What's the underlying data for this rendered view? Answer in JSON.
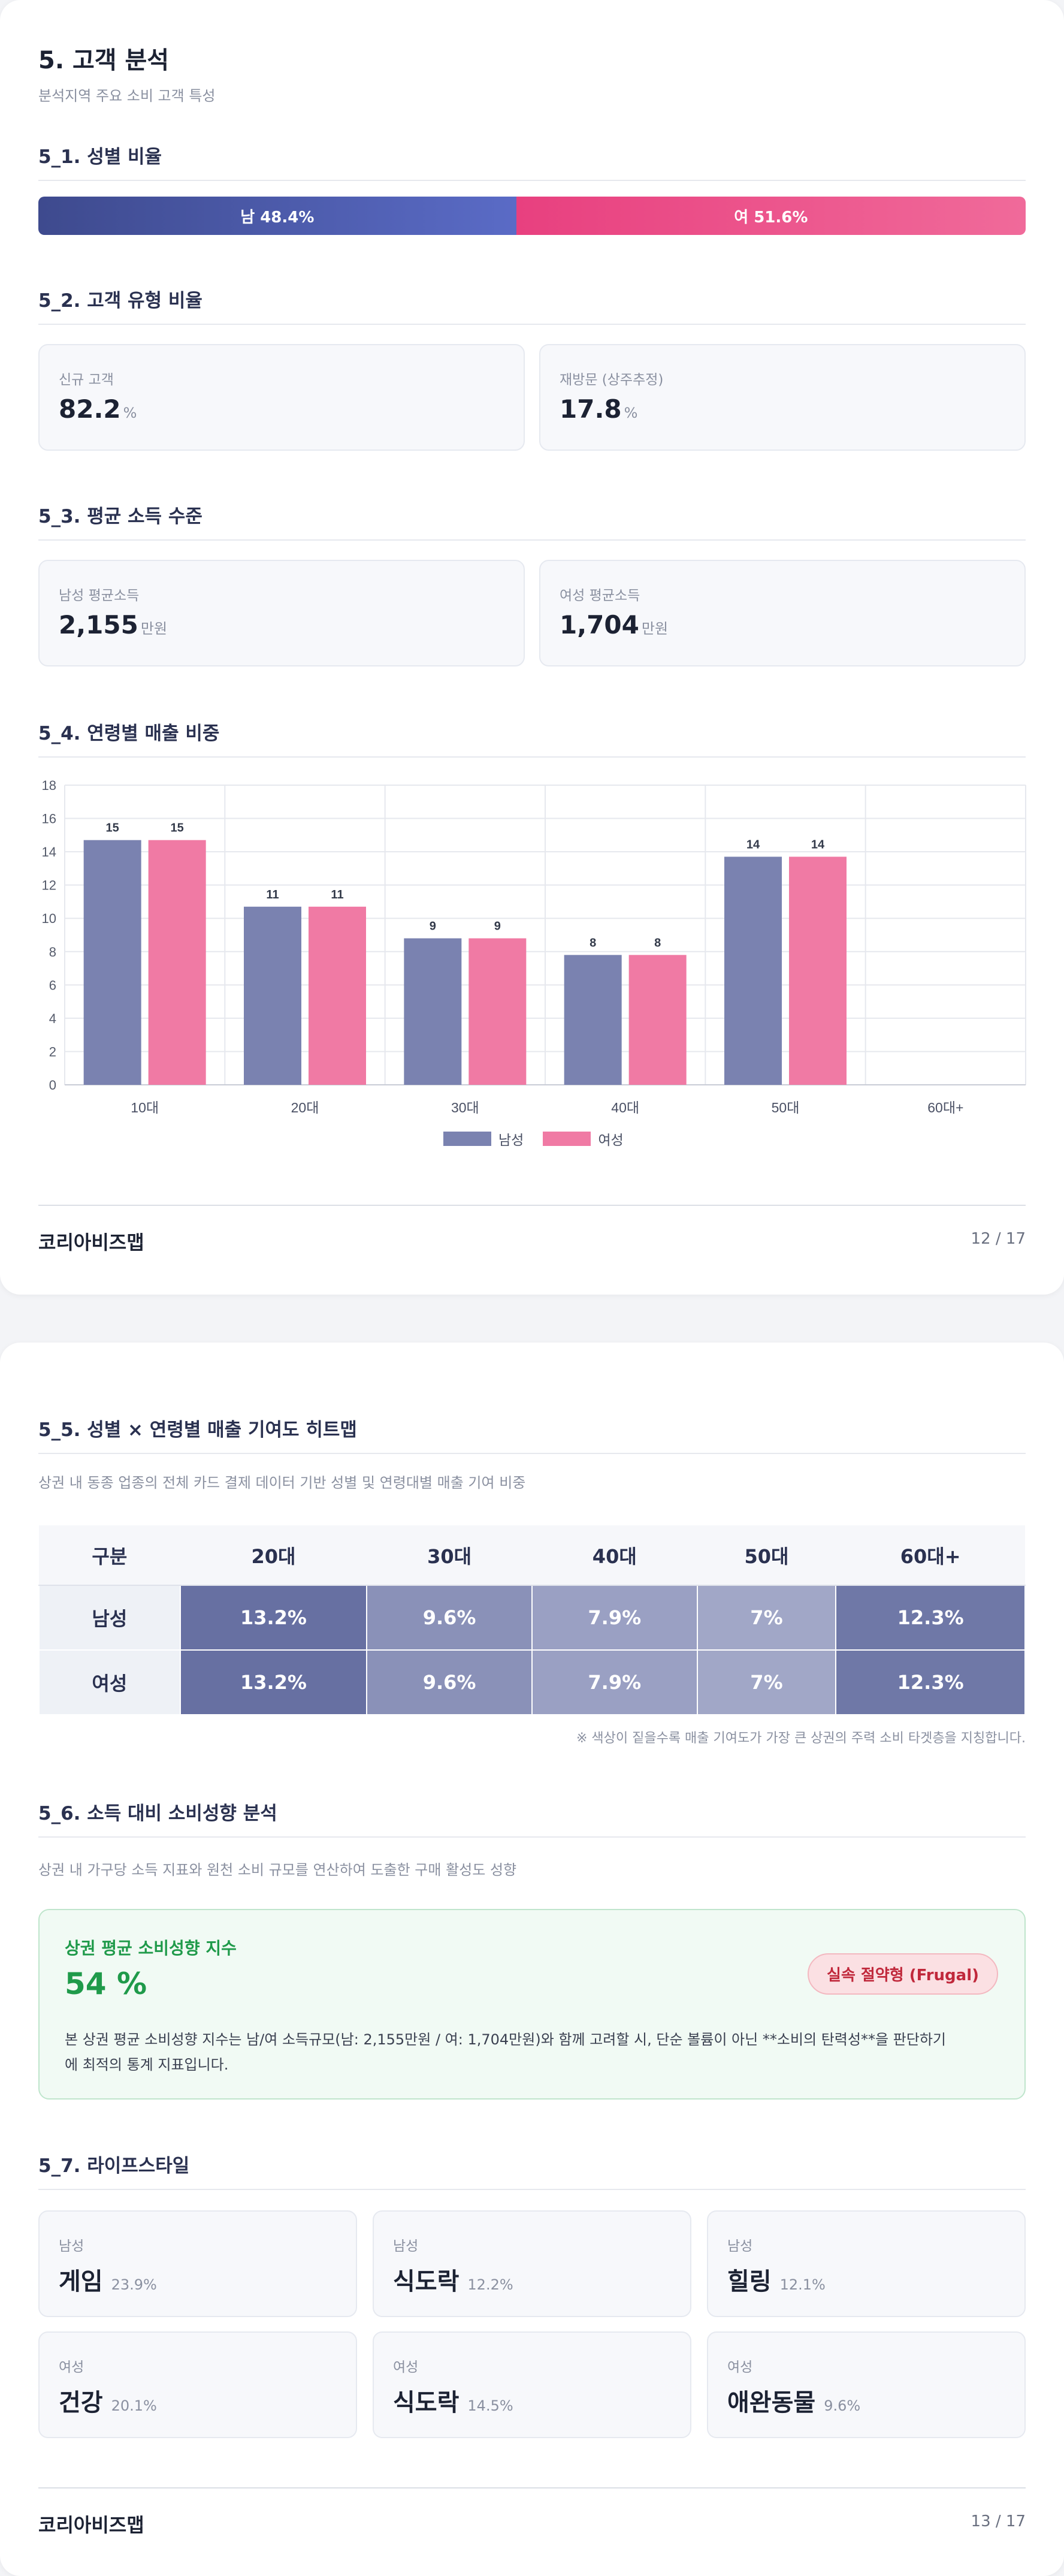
{
  "page1": {
    "title": "5. 고객 분석",
    "subtitle": "분석지역 주요 소비 고객 특성",
    "s1_title": "5_1. 성별 비율",
    "gender": {
      "male_label": "남 48.4%",
      "female_label": "여 51.6%",
      "male_share": 48.4,
      "female_share": 51.6,
      "male_color": "#3e4a8e",
      "female_color": "#e8407f"
    },
    "s2_title": "5_2. 고객 유형 비율",
    "customer_type": [
      {
        "label": "신규 고객",
        "value": "82.2",
        "unit": "%"
      },
      {
        "label": "재방문 (상주추정)",
        "value": "17.8",
        "unit": "%"
      }
    ],
    "s3_title": "5_3. 평균 소득 수준",
    "income": [
      {
        "label": "남성 평균소득",
        "value": "2,155",
        "unit": "만원"
      },
      {
        "label": "여성 평균소득",
        "value": "1,704",
        "unit": "만원"
      }
    ],
    "s4_title": "5_4. 연령별 매출 비중",
    "footer_brand": "코리아비즈맵",
    "footer_page": "12 / 17"
  },
  "chart_data": {
    "type": "bar",
    "categories": [
      "10대",
      "20대",
      "30대",
      "40대",
      "50대",
      "60대+"
    ],
    "series": [
      {
        "name": "남성",
        "values": [
          15,
          11,
          9,
          8,
          14,
          null
        ],
        "color": "#7a82b0"
      },
      {
        "name": "여성",
        "values": [
          15,
          11,
          9,
          8,
          14,
          null
        ],
        "color": "#f07aa4"
      }
    ],
    "plotted": [
      [
        14.7,
        10.7,
        8.8,
        7.8,
        13.7,
        0
      ],
      [
        14.7,
        10.7,
        8.8,
        7.8,
        13.7,
        0
      ]
    ],
    "yticks": [
      "0",
      "2",
      "4",
      "6",
      "8",
      "10",
      "12",
      "14",
      "16",
      "18"
    ],
    "ylim": [
      0,
      18
    ],
    "grid": true,
    "legend": "bottom"
  },
  "page2": {
    "s5_title": "5_5. 성별 × 연령별 매출 기여도 히트맵",
    "s5_desc": "상권 내 동종 업종의 전체 카드 결제 데이터 기반 성별 및 연령대별 매출 기여 비중",
    "heatmap": {
      "headers": [
        "구분",
        "20대",
        "30대",
        "40대",
        "50대",
        "60대+"
      ],
      "rows": [
        {
          "label": "남성",
          "cells": [
            "13.2%",
            "9.6%",
            "7.9%",
            "7%",
            "12.3%"
          ]
        },
        {
          "label": "여성",
          "cells": [
            "13.2%",
            "9.6%",
            "7.9%",
            "7%",
            "12.3%"
          ]
        }
      ],
      "cell_colors": [
        "#6770a2",
        "#8a91b8",
        "#9aa0c3",
        "#a1a7c7",
        "#6f78a7"
      ]
    },
    "heatmap_note": "※ 색상이 짙을수록 매출 기여도가 가장 큰 상권의 주력 소비 타겟층을 지칭합니다.",
    "s6_title": "5_6. 소득 대비 소비성향 분석",
    "s6_desc": "상권 내 가구당 소득 지표와 원천 소비 규모를 연산하여 도출한 구매 활성도 성향",
    "propensity": {
      "label": "상권 평균 소비성향 지수",
      "value": "54 %",
      "badge": "실속 절약형 (Frugal)",
      "desc_line1": "본 상권 평균 소비성향 지수는 남/여 소득규모(남: 2,155만원 / 여: 1,704만원)와 함께 고려할 시, 단순 볼륨이 아닌 **소비의 탄력성**을 판단하기",
      "desc_line2": "에 최적의 통계 지표입니다."
    },
    "s7_title": "5_7. 라이프스타일",
    "lifestyle": [
      {
        "gender": "남성",
        "name": "게임",
        "pct": "23.9%"
      },
      {
        "gender": "남성",
        "name": "식도락",
        "pct": "12.2%"
      },
      {
        "gender": "남성",
        "name": "힐링",
        "pct": "12.1%"
      },
      {
        "gender": "여성",
        "name": "건강",
        "pct": "20.1%"
      },
      {
        "gender": "여성",
        "name": "식도락",
        "pct": "14.5%"
      },
      {
        "gender": "여성",
        "name": "애완동물",
        "pct": "9.6%"
      }
    ],
    "footer_brand": "코리아비즈맵",
    "footer_page": "13 / 17"
  }
}
